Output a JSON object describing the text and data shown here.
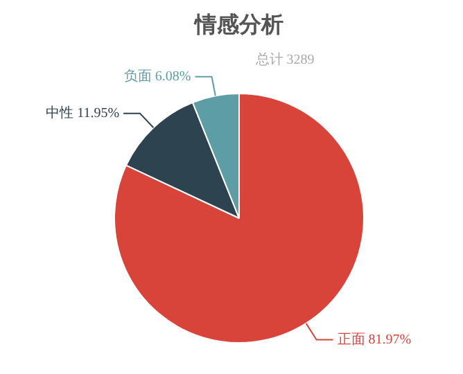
{
  "chart_data": {
    "type": "pie",
    "title": "情感分析",
    "subtitle": "总计 3289",
    "categories": [
      "正面",
      "中性",
      "负面"
    ],
    "values": [
      81.97,
      11.95,
      6.08
    ],
    "colors": [
      "#d8443a",
      "#2d4350",
      "#5d9ea6"
    ],
    "value_labels": [
      "81.97%",
      "11.95%",
      "6.08%"
    ]
  }
}
